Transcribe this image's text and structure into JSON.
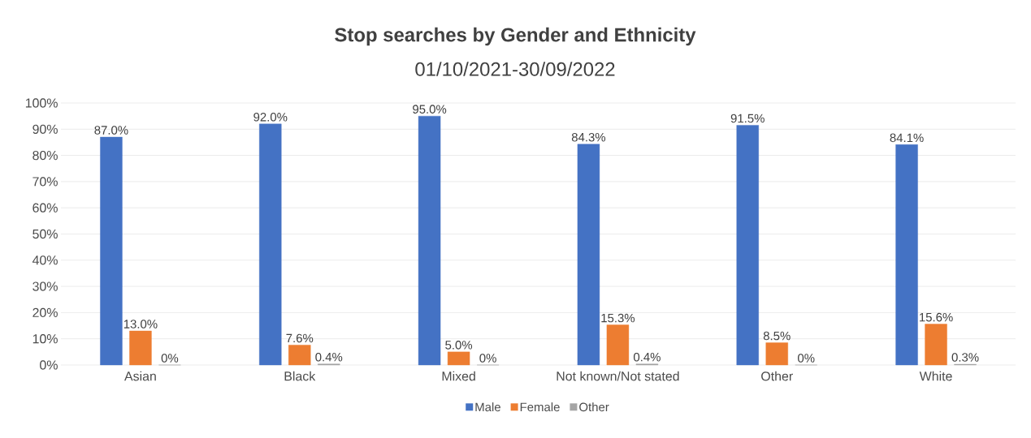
{
  "chart_data": {
    "type": "bar",
    "title": "Stop searches by Gender and Ethnicity",
    "subtitle": "01/10/2021-30/09/2022",
    "categories": [
      "Asian",
      "Black",
      "Mixed",
      "Not known/Not stated",
      "Other",
      "White"
    ],
    "series": [
      {
        "name": "Male",
        "color": "#4472c4",
        "values": [
          87.0,
          92.0,
          95.0,
          84.3,
          91.5,
          84.1
        ],
        "value_labels": [
          "87.0%",
          "92.0%",
          "95.0%",
          "84.3%",
          "91.5%",
          "84.1%"
        ]
      },
      {
        "name": "Female",
        "color": "#ed7d31",
        "values": [
          13.0,
          7.6,
          5.0,
          15.3,
          8.5,
          15.6
        ],
        "value_labels": [
          "13.0%",
          "7.6%",
          "5.0%",
          "15.3%",
          "8.5%",
          "15.6%"
        ]
      },
      {
        "name": "Other",
        "color": "#a5a5a5",
        "values": [
          0,
          0.4,
          0,
          0.4,
          0,
          0.3
        ],
        "value_labels": [
          "0%",
          "0.4%",
          "0%",
          "0.4%",
          "0%",
          "0.3%"
        ]
      }
    ],
    "ylim": [
      0,
      100
    ],
    "yticks": [
      {
        "value": 0,
        "label": "0%"
      },
      {
        "value": 10,
        "label": "10%"
      },
      {
        "value": 20,
        "label": "20%"
      },
      {
        "value": 30,
        "label": "30%"
      },
      {
        "value": 40,
        "label": "40%"
      },
      {
        "value": 50,
        "label": "50%"
      },
      {
        "value": 60,
        "label": "60%"
      },
      {
        "value": 70,
        "label": "70%"
      },
      {
        "value": 80,
        "label": "80%"
      },
      {
        "value": 90,
        "label": "90%"
      },
      {
        "value": 100,
        "label": "100%"
      }
    ],
    "grid": "y",
    "legend": "bottom"
  }
}
